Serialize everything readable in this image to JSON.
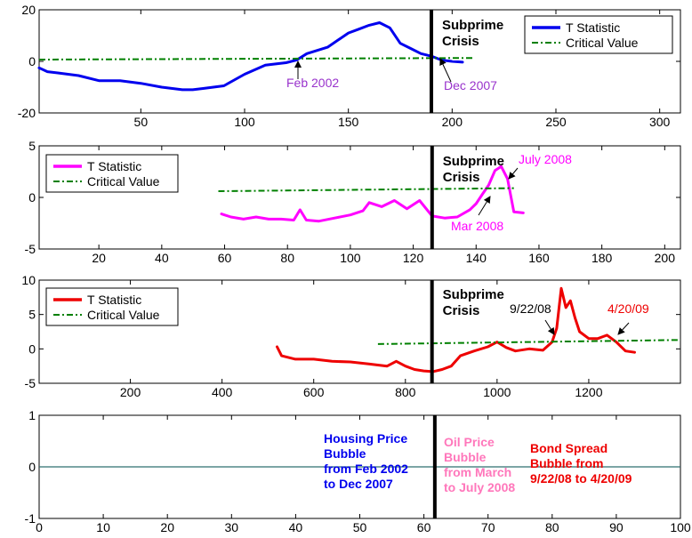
{
  "colors": {
    "blue": "#0000ee",
    "magenta": "#ff00ff",
    "red": "#ee0000",
    "green": "#008000",
    "black": "#000000",
    "purple": "#9933cc",
    "pink": "#ff77bb",
    "teal": "#2f6f6f"
  },
  "chart_data": [
    {
      "type": "line",
      "xlim": [
        1,
        310
      ],
      "ylim": [
        -20,
        20
      ],
      "x_ticks": [
        50,
        100,
        150,
        200,
        250,
        300
      ],
      "y_ticks": [
        -20,
        0,
        20
      ],
      "legend_position": "top-right",
      "legend": [
        {
          "label": "T Statistic",
          "style": "solid",
          "color": "#0000ee"
        },
        {
          "label": "Critical Value",
          "style": "dash-dot",
          "color": "#008000"
        }
      ],
      "series": [
        {
          "name": "T Statistic",
          "x": [
            1,
            5,
            10,
            20,
            30,
            40,
            50,
            60,
            70,
            75,
            80,
            90,
            100,
            110,
            120,
            125,
            130,
            140,
            150,
            155,
            160,
            165,
            170,
            175,
            180,
            185,
            190,
            195,
            200,
            205
          ],
          "y": [
            -2.5,
            -4,
            -4.5,
            -5.5,
            -7.5,
            -7.5,
            -8.5,
            -10,
            -11,
            -11,
            -10.5,
            -9.5,
            -5,
            -1.5,
            -0.5,
            0.5,
            3,
            5.5,
            11,
            12.5,
            14,
            15,
            13,
            7,
            5,
            3,
            2,
            0.5,
            0,
            -0.3
          ]
        },
        {
          "name": "Critical Value",
          "x": [
            1,
            210
          ],
          "y": [
            0.7,
            1.3
          ]
        }
      ],
      "vline_x": 190,
      "annotations": [
        {
          "text": "Feb 2002",
          "x": 125,
          "y": 0,
          "color": "#9933cc"
        },
        {
          "text": "Dec 2007",
          "x": 196,
          "y": 0,
          "color": "#9933cc"
        }
      ],
      "crisis_label": [
        "Subprime",
        "Crisis"
      ]
    },
    {
      "type": "line",
      "xlim": [
        1,
        205
      ],
      "ylim": [
        -5,
        5
      ],
      "x_ticks": [
        20,
        40,
        60,
        80,
        100,
        120,
        140,
        160,
        180,
        200
      ],
      "y_ticks": [
        -5,
        0,
        5
      ],
      "legend_position": "top-left",
      "legend": [
        {
          "label": "T Statistic",
          "style": "solid",
          "color": "#ff00ff"
        },
        {
          "label": "Critical Value",
          "style": "dash-dot",
          "color": "#008000"
        }
      ],
      "series": [
        {
          "name": "T Statistic",
          "x": [
            59,
            62,
            66,
            70,
            74,
            78,
            82,
            84,
            86,
            90,
            95,
            100,
            104,
            106,
            110,
            114,
            118,
            122,
            126,
            130,
            134,
            138,
            140,
            142,
            144,
            146,
            148,
            150,
            152,
            155
          ],
          "y": [
            -1.6,
            -1.9,
            -2.1,
            -1.9,
            -2.1,
            -2.1,
            -2.2,
            -1.2,
            -2.2,
            -2.3,
            -2,
            -1.7,
            -1.3,
            -0.5,
            -0.9,
            -0.3,
            -1.1,
            -0.3,
            -1.8,
            -2,
            -1.9,
            -1.2,
            -0.6,
            0.3,
            1.2,
            2.6,
            3,
            1.8,
            -1.4,
            -1.5
          ]
        },
        {
          "name": "Critical Value",
          "x": [
            58,
            152
          ],
          "y": [
            0.6,
            0.9
          ]
        }
      ],
      "vline_x": 126,
      "annotations": [
        {
          "text": "July 2008",
          "x": 148,
          "y": 3,
          "color": "#ff00ff"
        },
        {
          "text": "Mar 2008",
          "x": 143,
          "y": 0.5,
          "color": "#ff00ff"
        }
      ],
      "crisis_label": [
        "Subprime",
        "Crisis"
      ]
    },
    {
      "type": "line",
      "xlim": [
        1,
        1400
      ],
      "ylim": [
        -5,
        10
      ],
      "x_ticks": [
        200,
        400,
        600,
        800,
        1000,
        1200
      ],
      "y_ticks": [
        -5,
        0,
        5,
        10
      ],
      "legend_position": "top-left",
      "legend": [
        {
          "label": "T Statistic",
          "style": "solid",
          "color": "#ee0000"
        },
        {
          "label": "Critical Value",
          "style": "dash-dot",
          "color": "#008000"
        }
      ],
      "series": [
        {
          "name": "T Statistic",
          "x": [
            520,
            530,
            560,
            600,
            640,
            680,
            720,
            760,
            780,
            800,
            820,
            840,
            860,
            880,
            900,
            920,
            950,
            980,
            1000,
            1020,
            1040,
            1070,
            1100,
            1120,
            1130,
            1140,
            1150,
            1160,
            1170,
            1180,
            1200,
            1220,
            1240,
            1260,
            1280,
            1300
          ],
          "y": [
            0.3,
            -1,
            -1.5,
            -1.5,
            -1.8,
            -1.9,
            -2.2,
            -2.5,
            -1.8,
            -2.5,
            -3,
            -3.2,
            -3.3,
            -3,
            -2.5,
            -1,
            -0.3,
            0.3,
            1,
            0.2,
            -0.3,
            0,
            -0.2,
            1,
            3,
            8.8,
            6,
            7,
            4.5,
            2.5,
            1.5,
            1.5,
            2,
            1,
            -0.3,
            -0.5
          ]
        },
        {
          "name": "Critical Value",
          "x": [
            740,
            1400
          ],
          "y": [
            0.7,
            1.3
          ]
        }
      ],
      "vline_x": 858,
      "annotations": [
        {
          "text": "9/22/08",
          "x": 1128,
          "y": 1.2,
          "color": "#000000"
        },
        {
          "text": "4/20/09",
          "x": 1262,
          "y": 1.8,
          "color": "#ee0000"
        }
      ],
      "crisis_label": [
        "Subprime",
        "Crisis"
      ]
    },
    {
      "type": "line",
      "xlim": [
        0,
        100
      ],
      "ylim": [
        -1,
        1
      ],
      "x_ticks": [
        0,
        10,
        20,
        30,
        40,
        50,
        60,
        70,
        80,
        90,
        100
      ],
      "y_ticks": [
        -1,
        0,
        1
      ],
      "series": [
        {
          "name": "",
          "x": [
            0,
            100
          ],
          "y": [
            0,
            0
          ]
        }
      ],
      "vline_x": 61.7,
      "text_blocks": [
        {
          "lines": [
            "Housing Price",
            "Bubble",
            "from Feb 2002",
            "to Dec 2007"
          ],
          "color": "#0000ee"
        },
        {
          "lines": [
            "Oil Price",
            "Bubble",
            "from March",
            "to July 2008"
          ],
          "color": "#ff77bb"
        },
        {
          "lines": [
            "Bond Spread",
            "Bubble from",
            "9/22/08 to 4/20/09"
          ],
          "color": "#ee0000"
        }
      ]
    }
  ]
}
